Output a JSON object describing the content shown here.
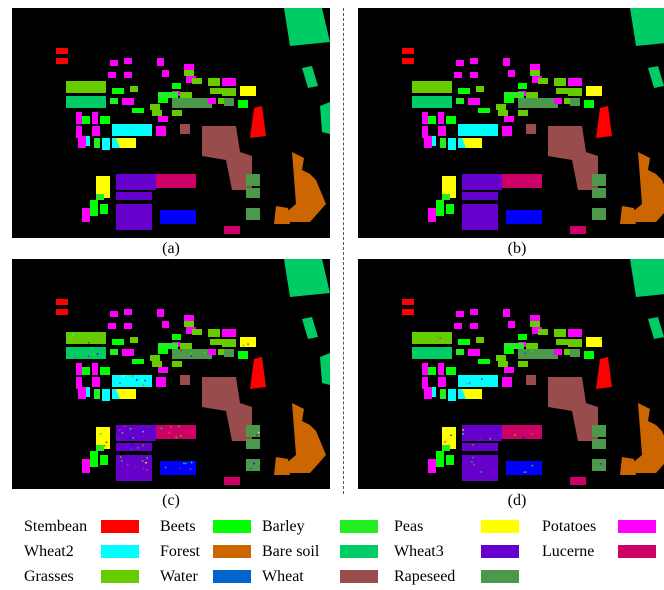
{
  "panels": [
    {
      "caption": "(a)",
      "noise": 0.0
    },
    {
      "caption": "(b)",
      "noise": 0.0
    },
    {
      "caption": "(c)",
      "noise": 0.9
    },
    {
      "caption": "(d)",
      "noise": 0.35
    }
  ],
  "legend": [
    {
      "label": "Stembean",
      "color": "#ff0000"
    },
    {
      "label": "Beets",
      "color": "#00ff00"
    },
    {
      "label": "Barley",
      "color": "#22ee22"
    },
    {
      "label": "Peas",
      "color": "#0000ff"
    },
    {
      "label": "",
      "color": "#ffff00"
    },
    {
      "label": "Potatoes",
      "color": "#ff00ff"
    },
    {
      "label": "Wheat2",
      "color": "#00ffff"
    },
    {
      "label": "Forest",
      "color": "#cc6600"
    },
    {
      "label": "Bare soil",
      "color": "#00cc66"
    },
    {
      "label": "Wheat3",
      "color": "#6600cc"
    },
    {
      "label": "Lucerne",
      "color": "#cc0066"
    },
    {
      "label": "Grasses",
      "color": "#66cc00"
    },
    {
      "label": "Water",
      "color": "#0066cc"
    },
    {
      "label": "Wheat",
      "color": "#994c4c"
    },
    {
      "label": "Rapeseed",
      "color": "#4c994c"
    }
  ],
  "classes": {
    "stembean": "#ff0000",
    "beets": "#00ff00",
    "barley": "#22ee22",
    "peas": "#0000ff",
    "yellow": "#ffff00",
    "potatoes": "#ff00ff",
    "wheat2": "#00ffff",
    "forest": "#cc6600",
    "baresoil": "#00cc66",
    "wheat3": "#6600cc",
    "lucerne": "#cc0066",
    "grasses": "#66cc00",
    "water": "#0066cc",
    "wheat": "#994c4c",
    "rapeseed": "#4c994c"
  }
}
